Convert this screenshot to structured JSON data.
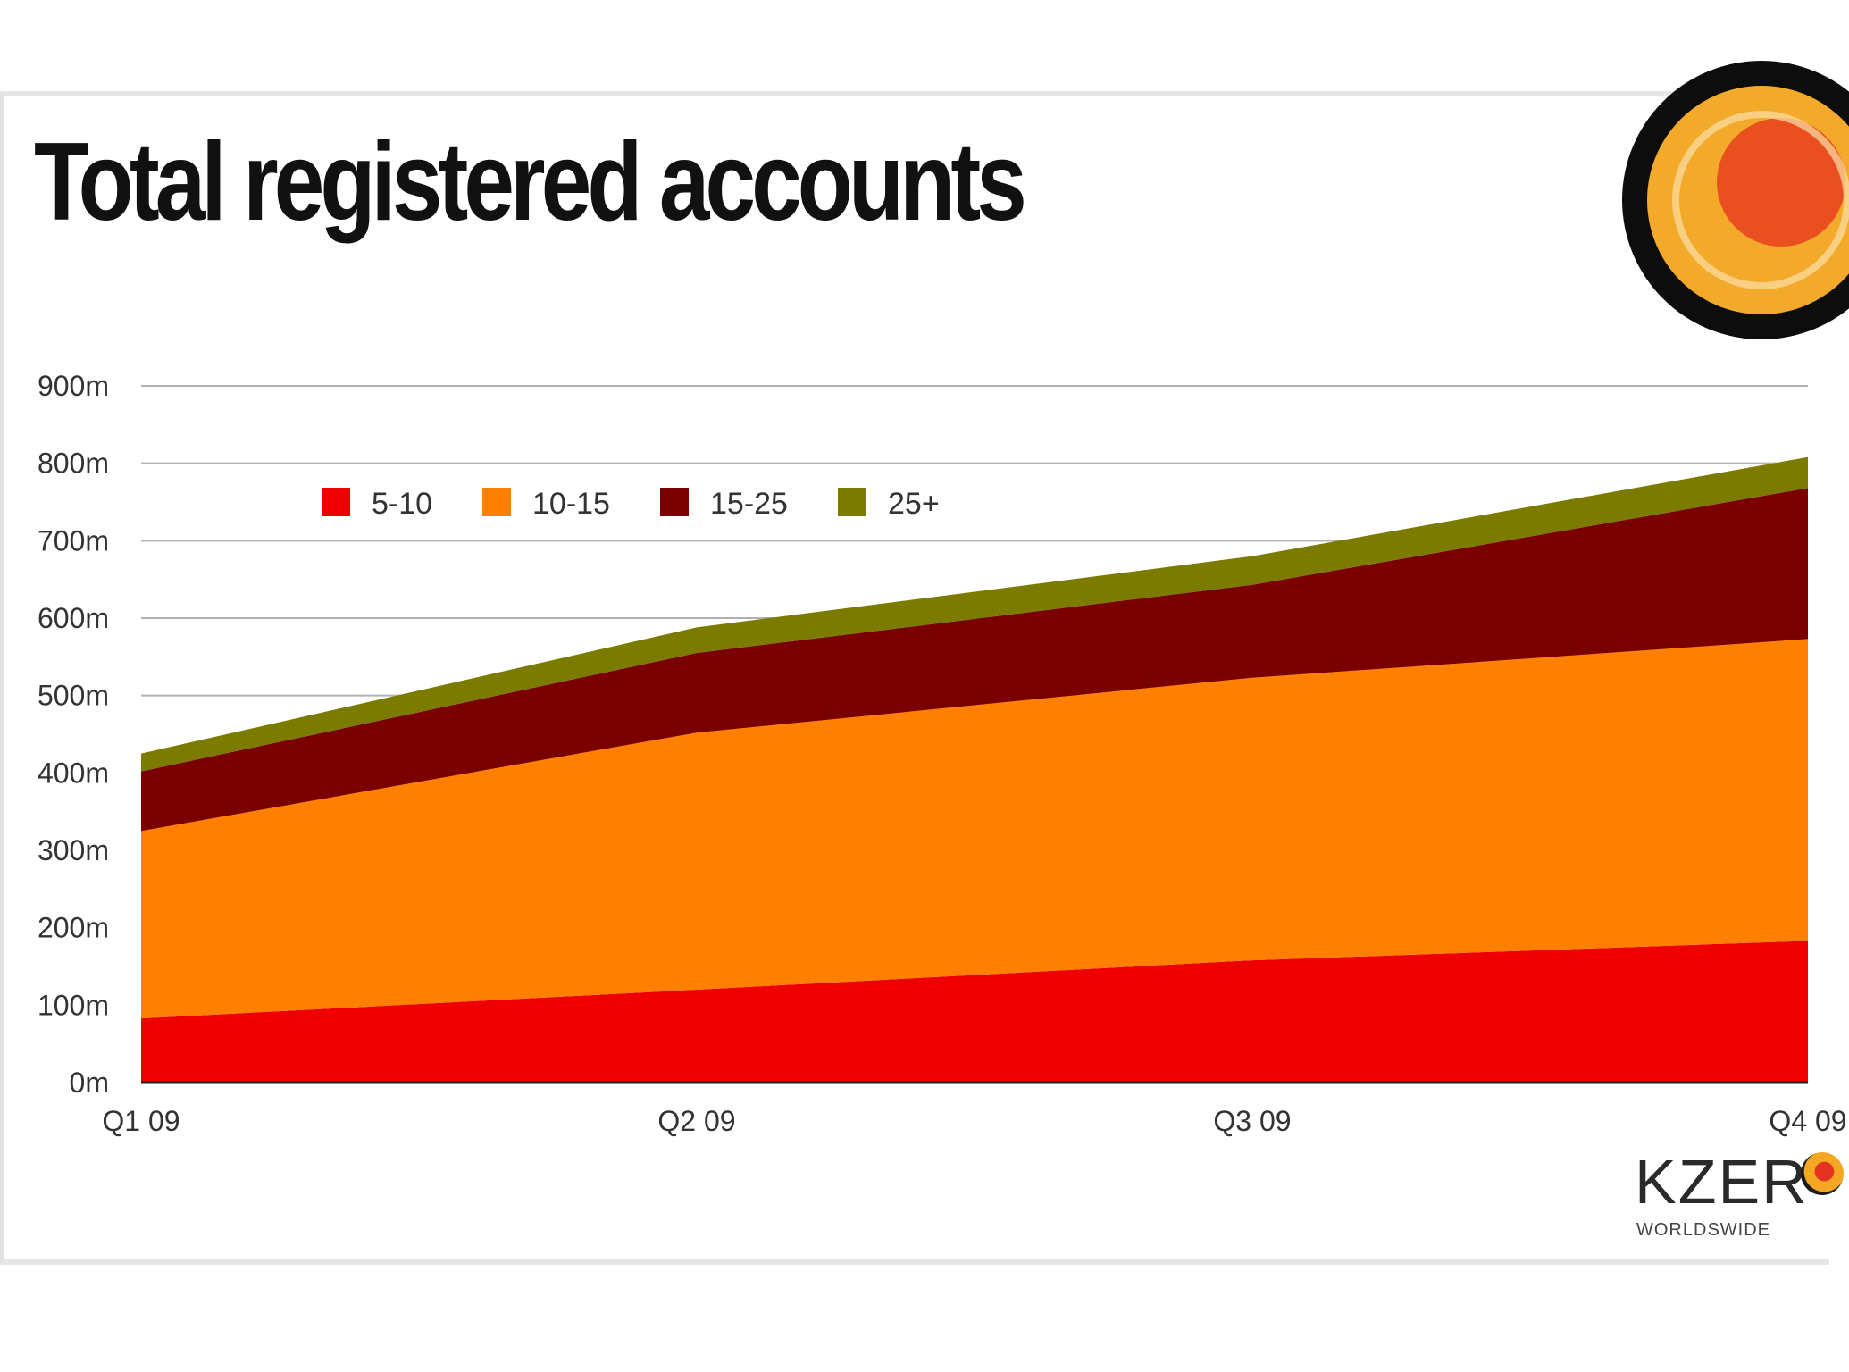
{
  "chart_data": {
    "type": "area",
    "stacked": true,
    "title": "Total registered accounts",
    "xlabel": "",
    "ylabel": "",
    "categories": [
      "Q1 09",
      "Q2 09",
      "Q3 09",
      "Q4 09"
    ],
    "yticks": [
      "0m",
      "100m",
      "200m",
      "300m",
      "400m",
      "500m",
      "600m",
      "700m",
      "800m",
      "900m"
    ],
    "ylim": [
      0,
      900
    ],
    "grid": true,
    "legend_position": "top-left",
    "series": [
      {
        "name": "5-10",
        "color": "#ee0000",
        "values": [
          83,
          120,
          158,
          183
        ]
      },
      {
        "name": "10-15",
        "color": "#ff8000",
        "values": [
          242,
          332,
          365,
          390
        ]
      },
      {
        "name": "15-25",
        "color": "#7a0000",
        "values": [
          77,
          103,
          120,
          195
        ]
      },
      {
        "name": "25+",
        "color": "#7b7b00",
        "values": [
          23,
          33,
          37,
          40
        ]
      }
    ]
  },
  "brand": {
    "name": "KZER",
    "tagline": "WORLDSWIDE",
    "logo": "kzero-globe-logo"
  }
}
